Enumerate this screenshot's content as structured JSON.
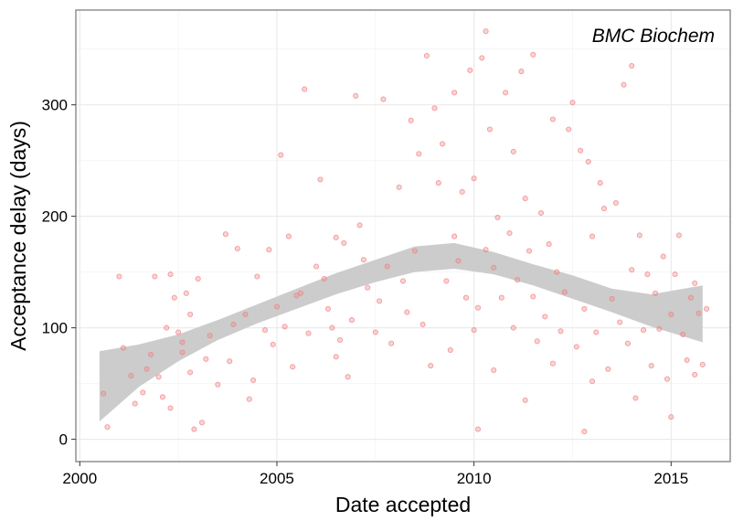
{
  "chart_data": {
    "type": "scatter",
    "title": "",
    "annotation": "BMC Biochem",
    "xlabel": "Date accepted",
    "ylabel": "Acceptance delay (days)",
    "xlim": [
      1999.9,
      2016.5
    ],
    "ylim": [
      -20,
      385
    ],
    "x_ticks": [
      2000,
      2005,
      2010,
      2015
    ],
    "y_ticks": [
      0,
      100,
      200,
      300
    ],
    "grid": true,
    "point_color": "#f08080",
    "ribbon_color": "#cccccc",
    "smooth_band": {
      "x": [
        2000.5,
        2001.5,
        2002.5,
        2003.5,
        2004.5,
        2005.5,
        2006.5,
        2007.5,
        2008.5,
        2009.5,
        2010.5,
        2011.5,
        2012.5,
        2013.5,
        2014.5,
        2015.8
      ],
      "lower": [
        16,
        47,
        70,
        89,
        104,
        117,
        130,
        141,
        150,
        153,
        148,
        138,
        126,
        114,
        101,
        87
      ],
      "upper": [
        79,
        85,
        94,
        107,
        121,
        135,
        149,
        161,
        173,
        176,
        168,
        157,
        147,
        135,
        130,
        138
      ]
    },
    "points": [
      {
        "x": 2000.6,
        "y": 41
      },
      {
        "x": 2000.7,
        "y": 11
      },
      {
        "x": 2001.0,
        "y": 146
      },
      {
        "x": 2001.1,
        "y": 82
      },
      {
        "x": 2001.3,
        "y": 57
      },
      {
        "x": 2001.4,
        "y": 32
      },
      {
        "x": 2001.6,
        "y": 42
      },
      {
        "x": 2001.7,
        "y": 63
      },
      {
        "x": 2001.8,
        "y": 76
      },
      {
        "x": 2001.9,
        "y": 146
      },
      {
        "x": 2002.0,
        "y": 56
      },
      {
        "x": 2002.1,
        "y": 38
      },
      {
        "x": 2002.2,
        "y": 100
      },
      {
        "x": 2002.3,
        "y": 148
      },
      {
        "x": 2002.3,
        "y": 28
      },
      {
        "x": 2002.4,
        "y": 127
      },
      {
        "x": 2002.5,
        "y": 96
      },
      {
        "x": 2002.6,
        "y": 87
      },
      {
        "x": 2002.6,
        "y": 78
      },
      {
        "x": 2002.7,
        "y": 131
      },
      {
        "x": 2002.8,
        "y": 112
      },
      {
        "x": 2002.8,
        "y": 60
      },
      {
        "x": 2002.9,
        "y": 9
      },
      {
        "x": 2003.0,
        "y": 144
      },
      {
        "x": 2003.1,
        "y": 15
      },
      {
        "x": 2003.2,
        "y": 72
      },
      {
        "x": 2003.3,
        "y": 93
      },
      {
        "x": 2003.5,
        "y": 49
      },
      {
        "x": 2003.7,
        "y": 184
      },
      {
        "x": 2003.8,
        "y": 70
      },
      {
        "x": 2003.9,
        "y": 103
      },
      {
        "x": 2004.0,
        "y": 171
      },
      {
        "x": 2004.2,
        "y": 112
      },
      {
        "x": 2004.3,
        "y": 36
      },
      {
        "x": 2004.4,
        "y": 53
      },
      {
        "x": 2004.5,
        "y": 146
      },
      {
        "x": 2004.7,
        "y": 98
      },
      {
        "x": 2004.8,
        "y": 170
      },
      {
        "x": 2004.9,
        "y": 85
      },
      {
        "x": 2005.0,
        "y": 119
      },
      {
        "x": 2005.1,
        "y": 255
      },
      {
        "x": 2005.2,
        "y": 101
      },
      {
        "x": 2005.3,
        "y": 182
      },
      {
        "x": 2005.4,
        "y": 65
      },
      {
        "x": 2005.5,
        "y": 129
      },
      {
        "x": 2005.6,
        "y": 131
      },
      {
        "x": 2005.7,
        "y": 314
      },
      {
        "x": 2005.8,
        "y": 95
      },
      {
        "x": 2006.0,
        "y": 155
      },
      {
        "x": 2006.1,
        "y": 233
      },
      {
        "x": 2006.2,
        "y": 144
      },
      {
        "x": 2006.3,
        "y": 117
      },
      {
        "x": 2006.4,
        "y": 100
      },
      {
        "x": 2006.5,
        "y": 181
      },
      {
        "x": 2006.5,
        "y": 74
      },
      {
        "x": 2006.6,
        "y": 89
      },
      {
        "x": 2006.7,
        "y": 176
      },
      {
        "x": 2006.8,
        "y": 56
      },
      {
        "x": 2006.9,
        "y": 107
      },
      {
        "x": 2007.0,
        "y": 308
      },
      {
        "x": 2007.1,
        "y": 192
      },
      {
        "x": 2007.2,
        "y": 161
      },
      {
        "x": 2007.3,
        "y": 136
      },
      {
        "x": 2007.5,
        "y": 96
      },
      {
        "x": 2007.6,
        "y": 124
      },
      {
        "x": 2007.7,
        "y": 305
      },
      {
        "x": 2007.8,
        "y": 155
      },
      {
        "x": 2007.9,
        "y": 86
      },
      {
        "x": 2008.1,
        "y": 226
      },
      {
        "x": 2008.2,
        "y": 142
      },
      {
        "x": 2008.3,
        "y": 114
      },
      {
        "x": 2008.4,
        "y": 286
      },
      {
        "x": 2008.5,
        "y": 169
      },
      {
        "x": 2008.6,
        "y": 256
      },
      {
        "x": 2008.7,
        "y": 103
      },
      {
        "x": 2008.8,
        "y": 344
      },
      {
        "x": 2008.9,
        "y": 66
      },
      {
        "x": 2009.0,
        "y": 297
      },
      {
        "x": 2009.1,
        "y": 230
      },
      {
        "x": 2009.2,
        "y": 265
      },
      {
        "x": 2009.3,
        "y": 142
      },
      {
        "x": 2009.4,
        "y": 80
      },
      {
        "x": 2009.5,
        "y": 311
      },
      {
        "x": 2009.5,
        "y": 182
      },
      {
        "x": 2009.6,
        "y": 160
      },
      {
        "x": 2009.7,
        "y": 222
      },
      {
        "x": 2009.8,
        "y": 127
      },
      {
        "x": 2009.9,
        "y": 331
      },
      {
        "x": 2010.0,
        "y": 98
      },
      {
        "x": 2010.0,
        "y": 234
      },
      {
        "x": 2010.1,
        "y": 118
      },
      {
        "x": 2010.1,
        "y": 9
      },
      {
        "x": 2010.2,
        "y": 342
      },
      {
        "x": 2010.3,
        "y": 170
      },
      {
        "x": 2010.3,
        "y": 366
      },
      {
        "x": 2010.4,
        "y": 278
      },
      {
        "x": 2010.5,
        "y": 154
      },
      {
        "x": 2010.5,
        "y": 62
      },
      {
        "x": 2010.6,
        "y": 199
      },
      {
        "x": 2010.7,
        "y": 127
      },
      {
        "x": 2010.8,
        "y": 311
      },
      {
        "x": 2010.9,
        "y": 185
      },
      {
        "x": 2011.0,
        "y": 100
      },
      {
        "x": 2011.0,
        "y": 258
      },
      {
        "x": 2011.1,
        "y": 143
      },
      {
        "x": 2011.2,
        "y": 330
      },
      {
        "x": 2011.3,
        "y": 216
      },
      {
        "x": 2011.3,
        "y": 35
      },
      {
        "x": 2011.4,
        "y": 169
      },
      {
        "x": 2011.5,
        "y": 345
      },
      {
        "x": 2011.5,
        "y": 128
      },
      {
        "x": 2011.6,
        "y": 88
      },
      {
        "x": 2011.7,
        "y": 203
      },
      {
        "x": 2011.8,
        "y": 110
      },
      {
        "x": 2011.9,
        "y": 175
      },
      {
        "x": 2012.0,
        "y": 287
      },
      {
        "x": 2012.0,
        "y": 68
      },
      {
        "x": 2012.1,
        "y": 150
      },
      {
        "x": 2012.2,
        "y": 97
      },
      {
        "x": 2012.3,
        "y": 132
      },
      {
        "x": 2012.4,
        "y": 278
      },
      {
        "x": 2012.5,
        "y": 302
      },
      {
        "x": 2012.6,
        "y": 83
      },
      {
        "x": 2012.7,
        "y": 259
      },
      {
        "x": 2012.8,
        "y": 117
      },
      {
        "x": 2012.8,
        "y": 7
      },
      {
        "x": 2012.9,
        "y": 249
      },
      {
        "x": 2013.0,
        "y": 52
      },
      {
        "x": 2013.0,
        "y": 182
      },
      {
        "x": 2013.1,
        "y": 96
      },
      {
        "x": 2013.2,
        "y": 230
      },
      {
        "x": 2013.3,
        "y": 207
      },
      {
        "x": 2013.4,
        "y": 63
      },
      {
        "x": 2013.5,
        "y": 126
      },
      {
        "x": 2013.6,
        "y": 212
      },
      {
        "x": 2013.7,
        "y": 105
      },
      {
        "x": 2013.8,
        "y": 318
      },
      {
        "x": 2013.9,
        "y": 86
      },
      {
        "x": 2014.0,
        "y": 152
      },
      {
        "x": 2014.0,
        "y": 335
      },
      {
        "x": 2014.1,
        "y": 37
      },
      {
        "x": 2014.2,
        "y": 183
      },
      {
        "x": 2014.3,
        "y": 98
      },
      {
        "x": 2014.4,
        "y": 148
      },
      {
        "x": 2014.5,
        "y": 66
      },
      {
        "x": 2014.6,
        "y": 131
      },
      {
        "x": 2014.7,
        "y": 99
      },
      {
        "x": 2014.8,
        "y": 164
      },
      {
        "x": 2014.9,
        "y": 54
      },
      {
        "x": 2015.0,
        "y": 112
      },
      {
        "x": 2015.0,
        "y": 20
      },
      {
        "x": 2015.1,
        "y": 148
      },
      {
        "x": 2015.2,
        "y": 183
      },
      {
        "x": 2015.3,
        "y": 94
      },
      {
        "x": 2015.4,
        "y": 71
      },
      {
        "x": 2015.5,
        "y": 127
      },
      {
        "x": 2015.6,
        "y": 58
      },
      {
        "x": 2015.6,
        "y": 140
      },
      {
        "x": 2015.7,
        "y": 113
      },
      {
        "x": 2015.8,
        "y": 67
      },
      {
        "x": 2015.9,
        "y": 117
      }
    ]
  }
}
